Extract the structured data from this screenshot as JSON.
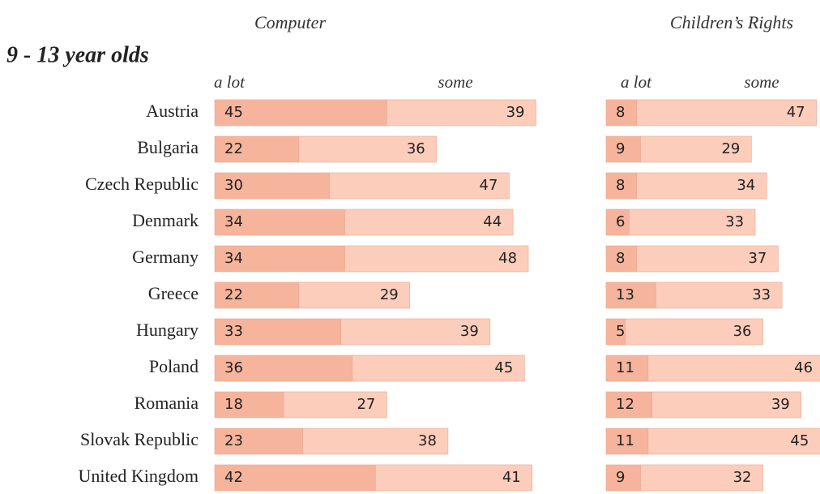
{
  "heading": "9 - 13 year olds",
  "chart_data": [
    {
      "type": "stacked-bar",
      "title": "Computer",
      "categories": [
        "Austria",
        "Bulgaria",
        "Czech Republic",
        "Denmark",
        "Germany",
        "Greece",
        "Hungary",
        "Poland",
        "Romania",
        "Slovak Republic",
        "United Kingdom"
      ],
      "series": [
        {
          "name": "a lot",
          "color": "#f5b49b",
          "values": [
            45,
            22,
            30,
            34,
            34,
            22,
            33,
            36,
            18,
            23,
            42
          ]
        },
        {
          "name": "some",
          "color": "#fccdbb",
          "values": [
            39,
            36,
            47,
            44,
            48,
            29,
            39,
            45,
            27,
            38,
            41
          ]
        }
      ]
    },
    {
      "type": "stacked-bar",
      "title": "Children’s Rights",
      "series": [
        {
          "name": "a lot",
          "color": "#f5b49b",
          "values": [
            8,
            9,
            8,
            6,
            8,
            13,
            5,
            11,
            12,
            11,
            9
          ]
        },
        {
          "name": "some",
          "color": "#fccdbb",
          "values": [
            47,
            29,
            34,
            33,
            37,
            33,
            36,
            46,
            39,
            45,
            32
          ]
        }
      ]
    }
  ]
}
